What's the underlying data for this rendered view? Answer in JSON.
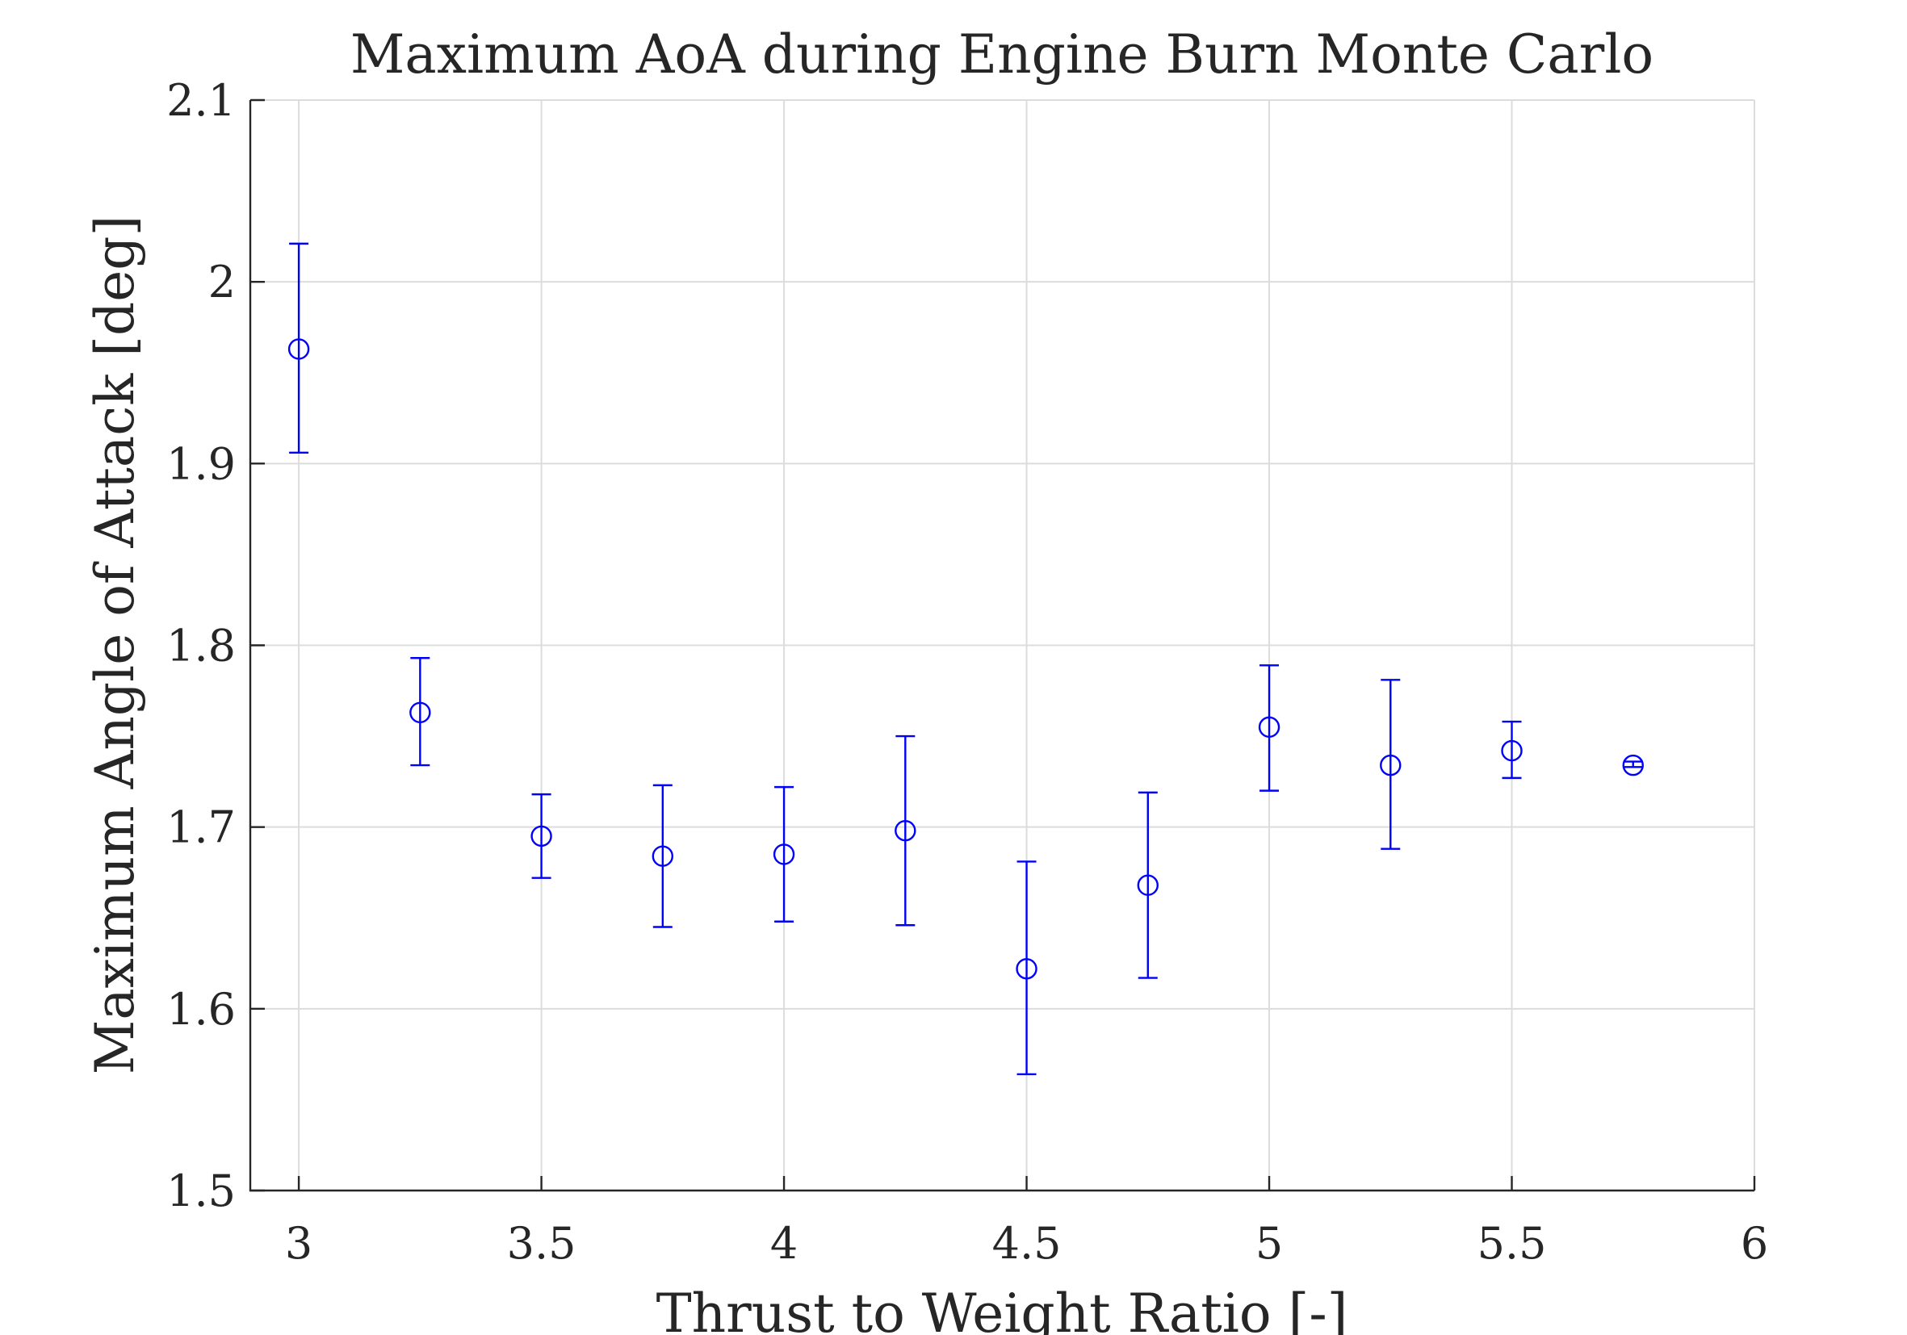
{
  "chart_data": {
    "type": "scatter",
    "title": "Maximum AoA during Engine Burn Monte Carlo",
    "xlabel": "Thrust to Weight Ratio [-]",
    "ylabel": "Maximum Angle of Attack [deg]",
    "xlim": [
      2.9,
      6
    ],
    "ylim": [
      1.5,
      2.1
    ],
    "xticks": [
      3,
      3.5,
      4,
      4.5,
      5,
      5.5,
      6
    ],
    "xtick_labels": [
      "3",
      "3.5",
      "4",
      "4.5",
      "5",
      "5.5",
      "6"
    ],
    "yticks": [
      1.5,
      1.6,
      1.7,
      1.8,
      1.9,
      2.0,
      2.1
    ],
    "ytick_labels": [
      "1.5",
      "1.6",
      "1.7",
      "1.8",
      "1.9",
      "2",
      "2.1"
    ],
    "grid": true,
    "color": "#0000ff",
    "marker": "circle",
    "series": [
      {
        "x": [
          3.0,
          3.25,
          3.5,
          3.75,
          4.0,
          4.25,
          4.5,
          4.75,
          5.0,
          5.25,
          5.5,
          5.75
        ],
        "y": [
          1.963,
          1.763,
          1.695,
          1.684,
          1.685,
          1.698,
          1.622,
          1.668,
          1.755,
          1.734,
          1.742,
          1.734
        ],
        "lower": [
          1.906,
          1.734,
          1.672,
          1.645,
          1.648,
          1.646,
          1.564,
          1.617,
          1.72,
          1.688,
          1.727,
          1.733
        ],
        "upper": [
          2.021,
          1.793,
          1.718,
          1.723,
          1.722,
          1.75,
          1.681,
          1.719,
          1.789,
          1.781,
          1.758,
          1.736
        ]
      }
    ]
  }
}
